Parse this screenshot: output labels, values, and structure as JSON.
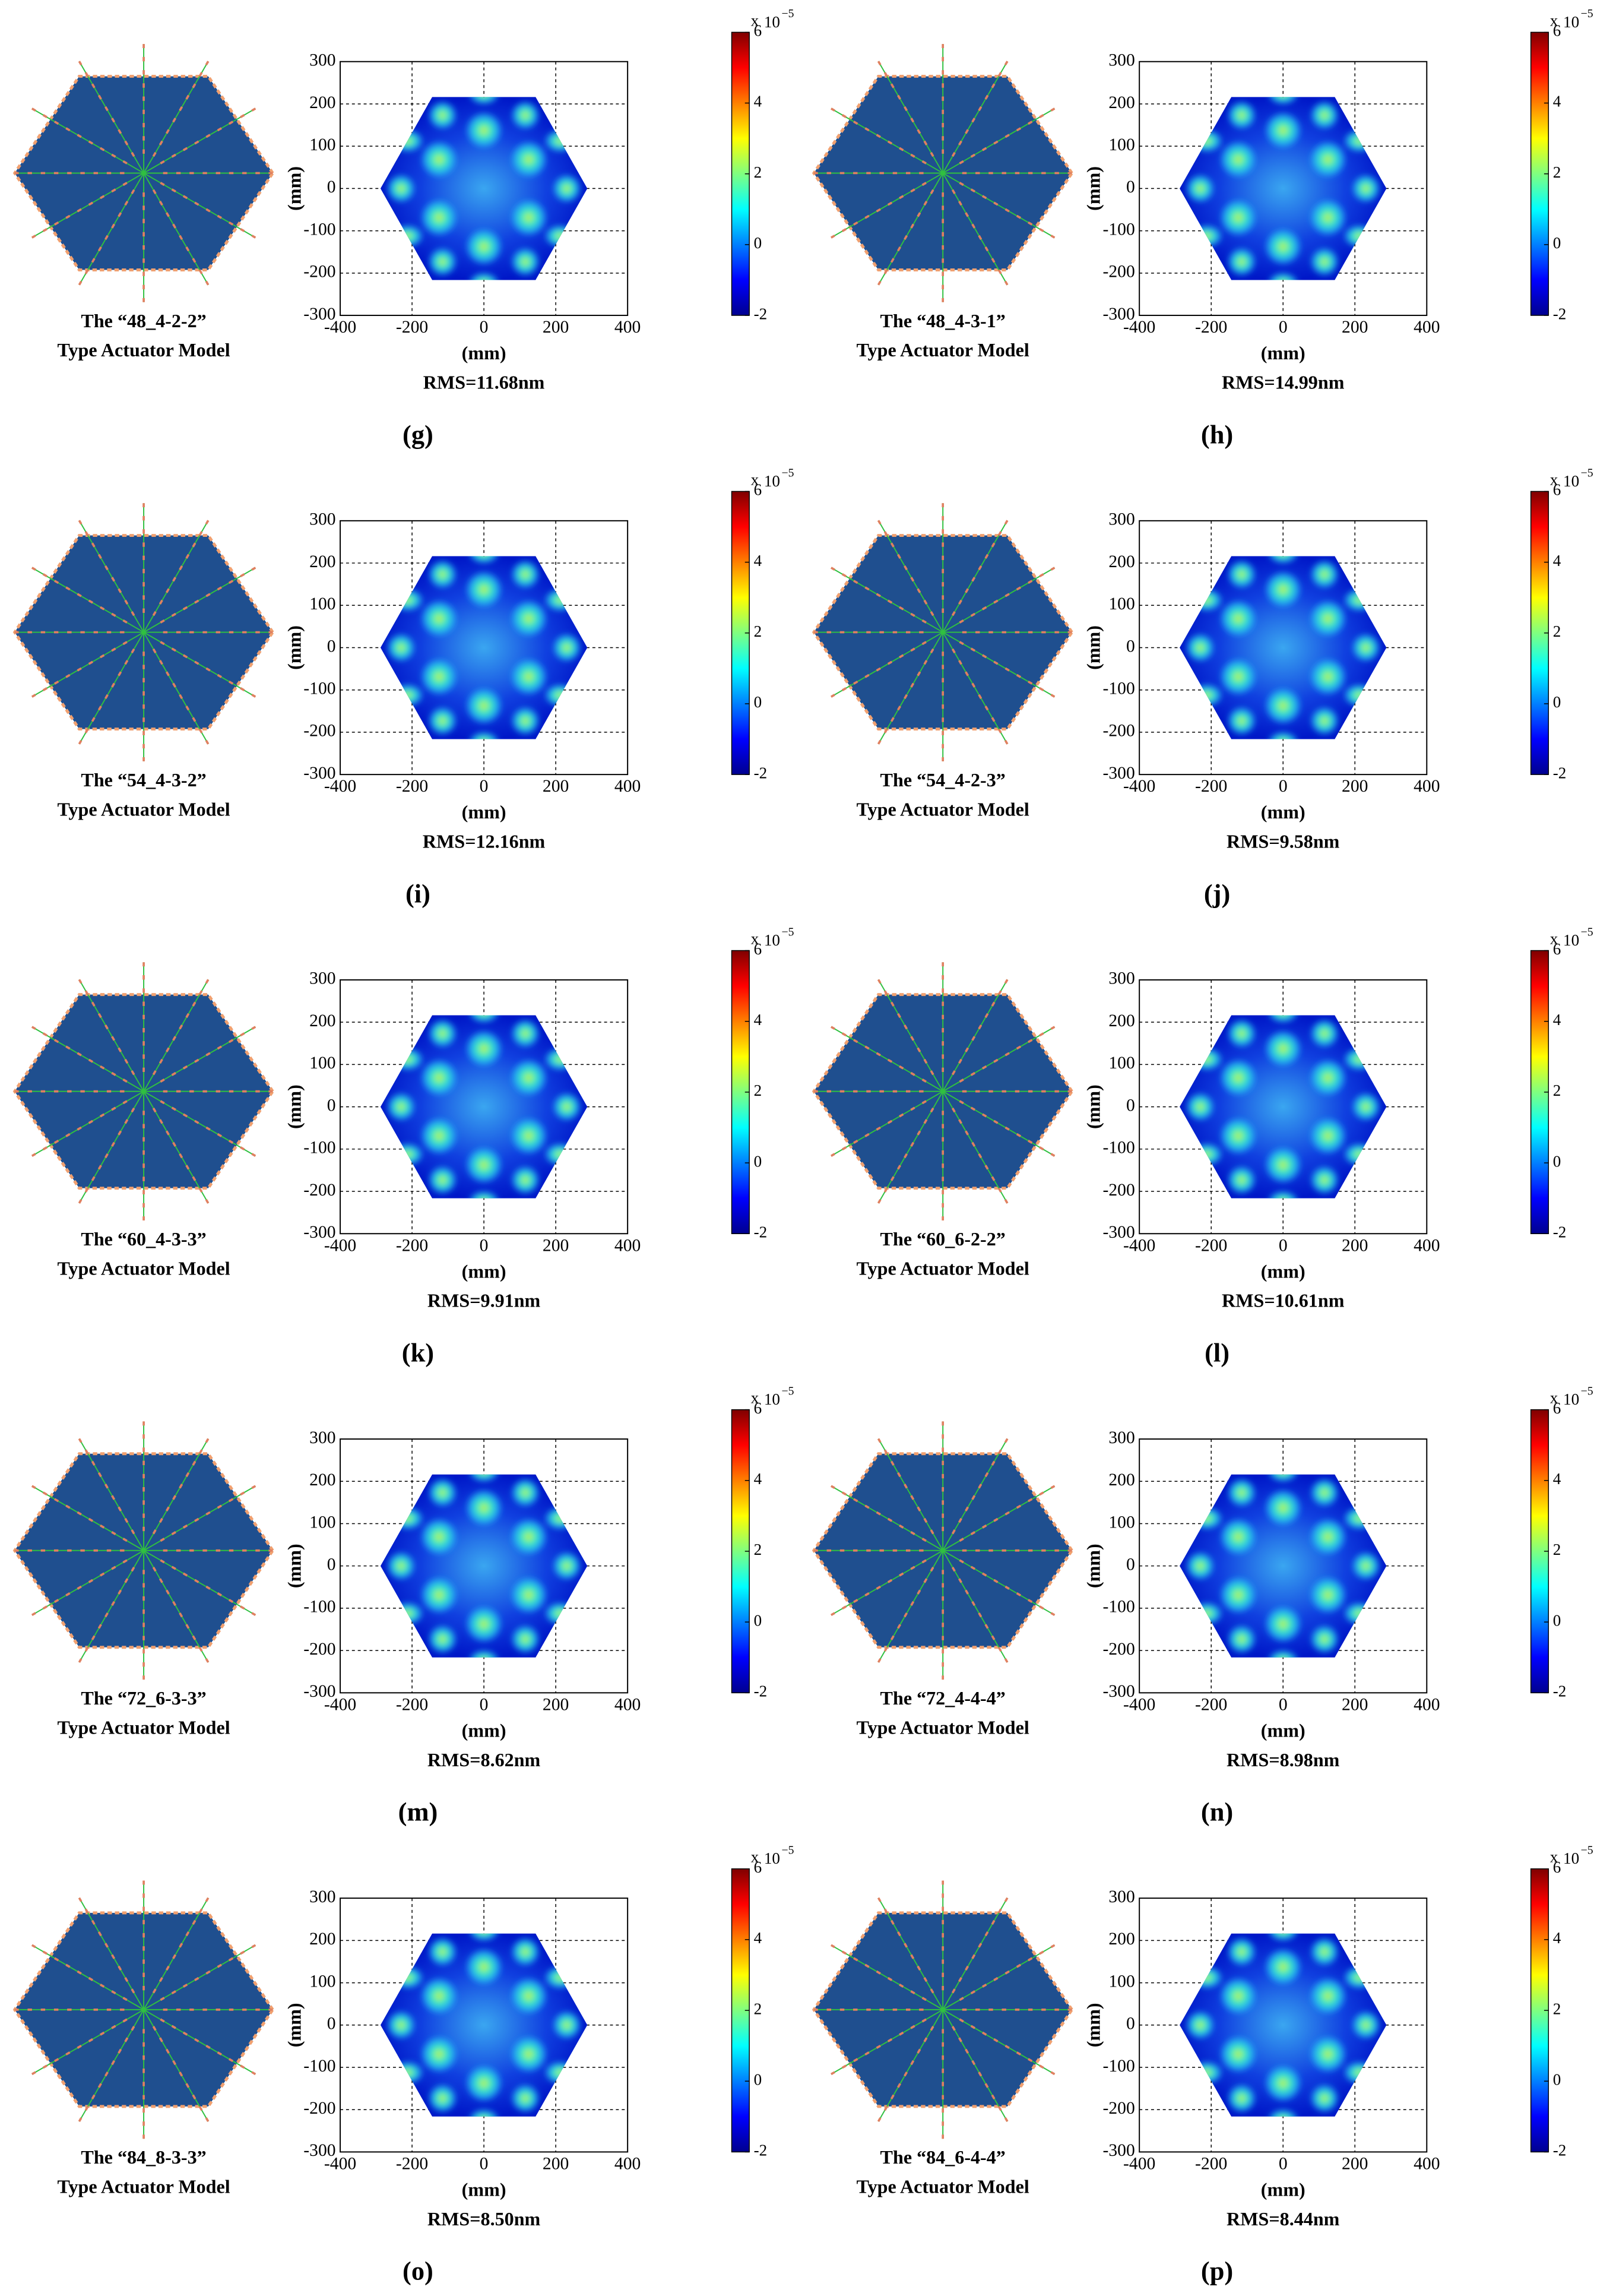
{
  "panels": [
    {
      "model": "The “48_4-2-2”",
      "model_type": "Type Actuator Model",
      "rms": "RMS=11.68nm",
      "letter": "(g)"
    },
    {
      "model": "The “48_4-3-1”",
      "model_type": "Type Actuator Model",
      "rms": "RMS=14.99nm",
      "letter": "(h)"
    },
    {
      "model": "The “54_4-3-2”",
      "model_type": "Type Actuator Model",
      "rms": "RMS=12.16nm",
      "letter": "(i)"
    },
    {
      "model": "The “54_4-2-3”",
      "model_type": "Type Actuator Model",
      "rms": "RMS=9.58nm",
      "letter": "(j)"
    },
    {
      "model": "The “60_4-3-3”",
      "model_type": "Type Actuator Model",
      "rms": "RMS=9.91nm",
      "letter": "(k)"
    },
    {
      "model": "The “60_6-2-2”",
      "model_type": "Type Actuator Model",
      "rms": "RMS=10.61nm",
      "letter": "(l)"
    },
    {
      "model": "The “72_6-3-3”",
      "model_type": "Type Actuator Model",
      "rms": "RMS=8.62nm",
      "letter": "(m)"
    },
    {
      "model": "The “72_4-4-4”",
      "model_type": "Type Actuator Model",
      "rms": "RMS=8.98nm",
      "letter": "(n)"
    },
    {
      "model": "The “84_8-3-3”",
      "model_type": "Type Actuator Model",
      "rms": "RMS=8.50nm",
      "letter": "(o)"
    },
    {
      "model": "The “84_6-4-4”",
      "model_type": "Type Actuator Model",
      "rms": "RMS=8.44nm",
      "letter": "(p)"
    }
  ],
  "axes": {
    "xticks": [
      -400,
      -200,
      0,
      200,
      400
    ],
    "yticks": [
      -300,
      -200,
      -100,
      0,
      100,
      200,
      300
    ],
    "xlabel": "(mm)",
    "ylabel": "(mm)",
    "colorbar_ticks": [
      -2,
      0,
      2,
      4,
      6
    ],
    "colorbar_multiplier": "x",
    "colorbar_base": "10",
    "colorbar_power": "−5"
  }
}
